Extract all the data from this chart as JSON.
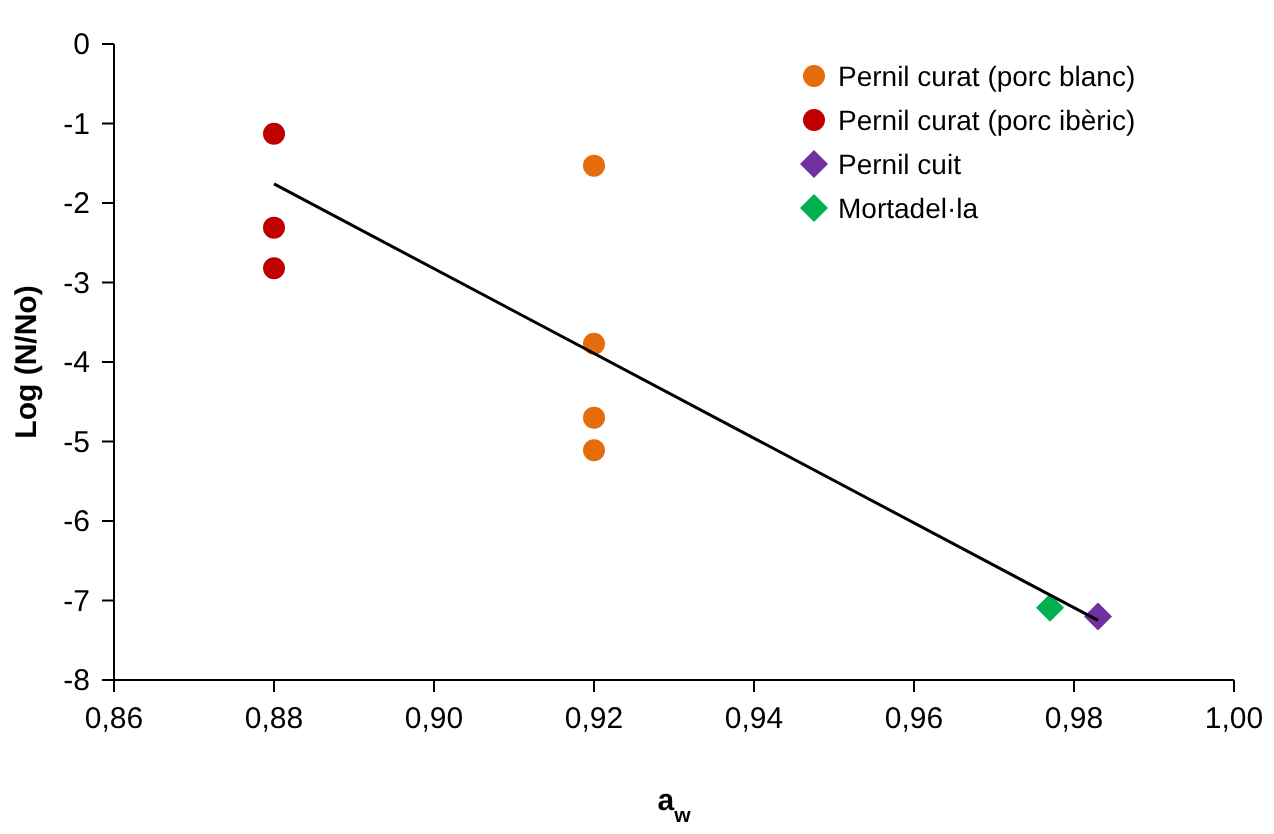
{
  "chart_data": {
    "type": "scatter",
    "xlabel": "a$_{w}$",
    "ylabel": "Log (N/No)",
    "xlim": [
      0.86,
      1.0
    ],
    "xticks": [
      {
        "value": 0.86,
        "label": "0,86"
      },
      {
        "value": 0.88,
        "label": "0,88"
      },
      {
        "value": 0.9,
        "label": "0,90"
      },
      {
        "value": 0.92,
        "label": "0,92"
      },
      {
        "value": 0.94,
        "label": "0,94"
      },
      {
        "value": 0.96,
        "label": "0,96"
      },
      {
        "value": 0.98,
        "label": "0,98"
      },
      {
        "value": 1.0,
        "label": "1,00"
      }
    ],
    "ylim": [
      -8,
      0
    ],
    "yticks": [
      -8,
      -7,
      -6,
      -5,
      -4,
      -3,
      -2,
      -1,
      0
    ],
    "grid": false,
    "legend": "top right",
    "series": [
      {
        "name": "Pernil curat (porc blanc)",
        "color": "#e46c0a",
        "marker": "circle",
        "x": [
          0.92,
          0.92,
          0.92,
          0.92
        ],
        "values": [
          -1.53,
          -3.77,
          -4.7,
          -5.11
        ]
      },
      {
        "name": "Pernil curat (porc ibèric)",
        "color": "#c00000",
        "marker": "circle",
        "x": [
          0.88,
          0.88,
          0.88
        ],
        "values": [
          -1.13,
          -2.31,
          -2.82
        ]
      },
      {
        "name": "Pernil cuit",
        "color": "#7030a0",
        "marker": "diamond",
        "x": [
          0.983
        ],
        "values": [
          -7.2
        ]
      },
      {
        "name": "Mortadel·la",
        "color": "#00b050",
        "marker": "diamond",
        "x": [
          0.977
        ],
        "values": [
          -7.09
        ]
      },
      {
        "type": "line",
        "color": "#000000",
        "marker": "none",
        "x": [
          0.88,
          0.983
        ],
        "values": [
          -1.76,
          -7.25
        ]
      }
    ]
  }
}
